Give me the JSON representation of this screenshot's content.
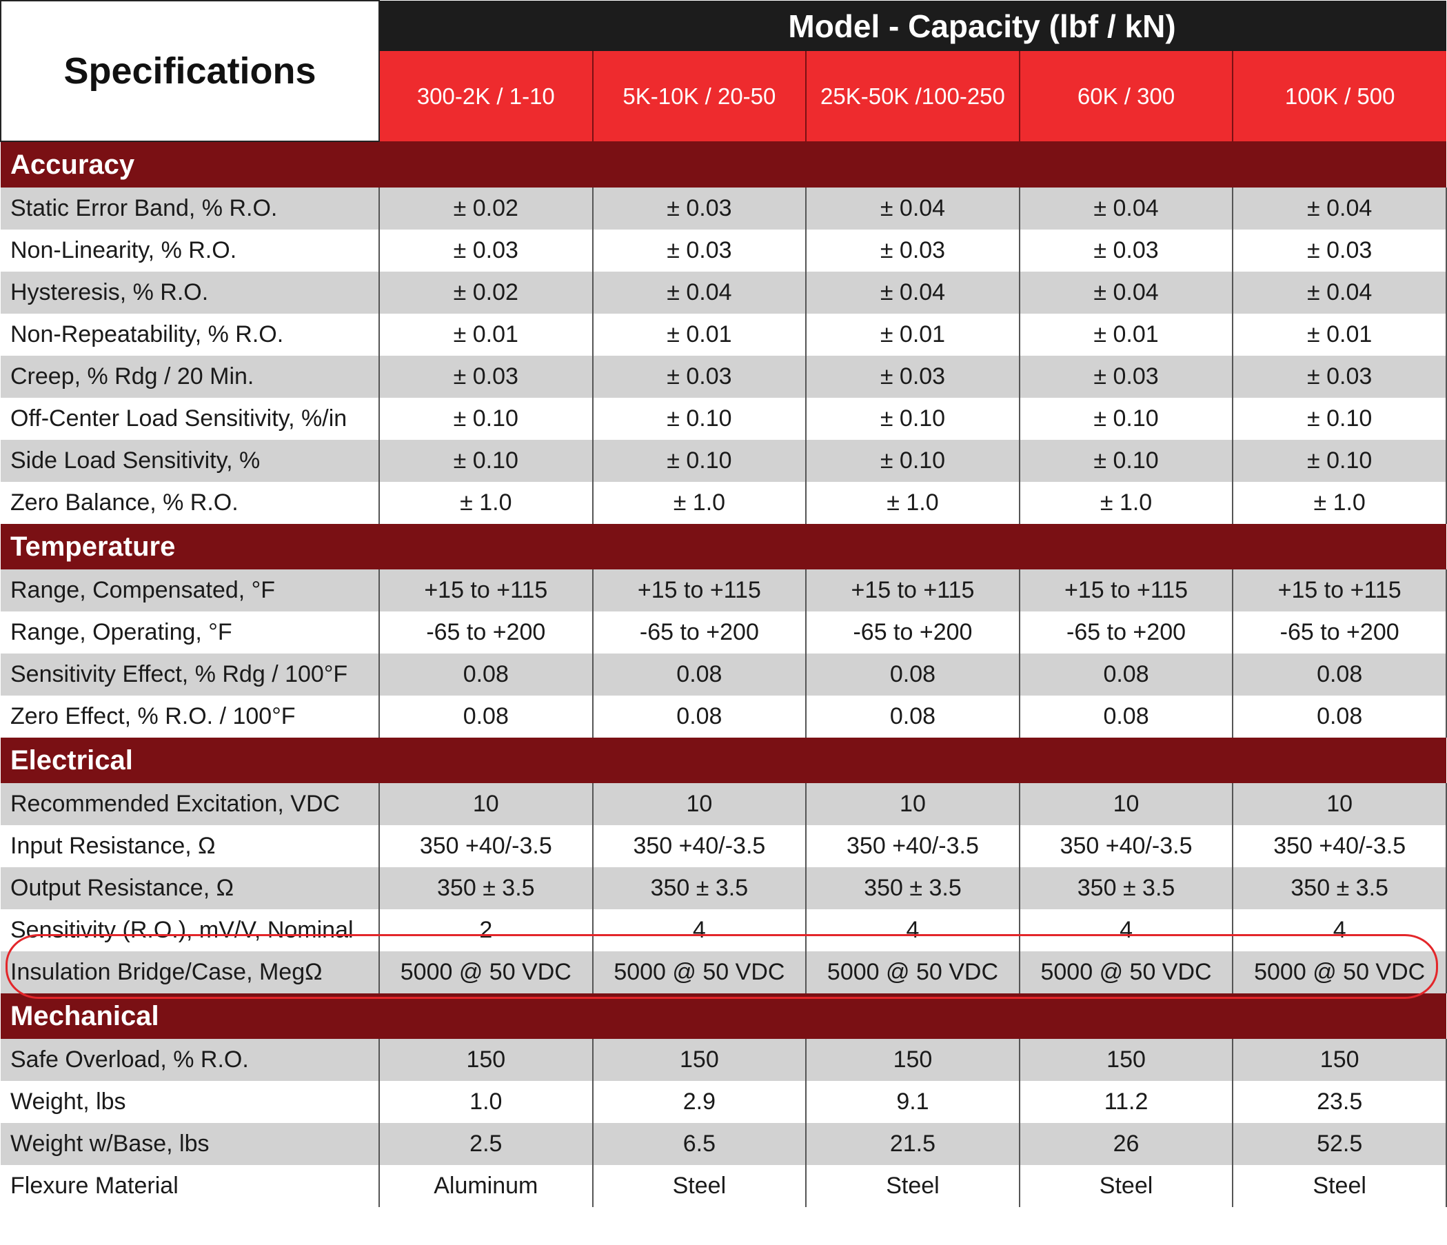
{
  "header": {
    "title": "Specifications",
    "group_label": "Model - Capacity (lbf / kN)",
    "models": [
      "300-2K / 1-10",
      "5K-10K / 20-50",
      "25K-50K /100-250",
      "60K / 300",
      "100K / 500"
    ]
  },
  "sections": [
    {
      "name": "Accuracy",
      "rows": [
        {
          "label": "Static Error Band, % R.O.",
          "values": [
            "± 0.02",
            "± 0.03",
            "± 0.04",
            "± 0.04",
            "± 0.04"
          ]
        },
        {
          "label": "Non-Linearity, % R.O.",
          "values": [
            "± 0.03",
            "± 0.03",
            "± 0.03",
            "± 0.03",
            "± 0.03"
          ]
        },
        {
          "label": "Hysteresis, % R.O.",
          "values": [
            "± 0.02",
            "± 0.04",
            "± 0.04",
            "± 0.04",
            "± 0.04"
          ]
        },
        {
          "label": "Non-Repeatability, % R.O.",
          "values": [
            "± 0.01",
            "± 0.01",
            "± 0.01",
            "± 0.01",
            "± 0.01"
          ]
        },
        {
          "label": "Creep, % Rdg / 20 Min.",
          "values": [
            "± 0.03",
            "± 0.03",
            "± 0.03",
            "± 0.03",
            "± 0.03"
          ]
        },
        {
          "label": "Off-Center Load Sensitivity, %/in",
          "values": [
            "± 0.10",
            "± 0.10",
            "± 0.10",
            "± 0.10",
            "± 0.10"
          ]
        },
        {
          "label": "Side Load Sensitivity, %",
          "values": [
            "± 0.10",
            "± 0.10",
            "± 0.10",
            "± 0.10",
            "± 0.10"
          ]
        },
        {
          "label": "Zero Balance, % R.O.",
          "values": [
            "± 1.0",
            "± 1.0",
            "± 1.0",
            "± 1.0",
            "± 1.0"
          ]
        }
      ]
    },
    {
      "name": "Temperature",
      "rows": [
        {
          "label": "Range, Compensated, °F",
          "values": [
            "+15 to +115",
            "+15 to +115",
            "+15 to +115",
            "+15 to +115",
            "+15 to +115"
          ]
        },
        {
          "label": "Range, Operating, °F",
          "values": [
            "-65 to +200",
            "-65 to +200",
            "-65 to +200",
            "-65 to +200",
            "-65 to +200"
          ]
        },
        {
          "label": "Sensitivity Effect, % Rdg / 100°F",
          "values": [
            "0.08",
            "0.08",
            "0.08",
            "0.08",
            "0.08"
          ]
        },
        {
          "label": "Zero Effect, % R.O. / 100°F",
          "values": [
            "0.08",
            "0.08",
            "0.08",
            "0.08",
            "0.08"
          ]
        }
      ]
    },
    {
      "name": "Electrical",
      "rows": [
        {
          "label": "Recommended Excitation, VDC",
          "values": [
            "10",
            "10",
            "10",
            "10",
            "10"
          ]
        },
        {
          "label": "Input Resistance, Ω",
          "values": [
            "350 +40/-3.5",
            "350 +40/-3.5",
            "350 +40/-3.5",
            "350 +40/-3.5",
            "350 +40/-3.5"
          ]
        },
        {
          "label": "Output Resistance, Ω",
          "values": [
            "350 ± 3.5",
            "350 ± 3.5",
            "350 ± 3.5",
            "350 ± 3.5",
            "350 ± 3.5"
          ]
        },
        {
          "label": "Sensitivity (R.O.), mV/V, Nominal",
          "values": [
            "2",
            "4",
            "4",
            "4",
            "4"
          ]
        },
        {
          "label": "Insulation Bridge/Case, MegΩ",
          "values": [
            "5000 @ 50 VDC",
            "5000 @ 50 VDC",
            "5000 @ 50 VDC",
            "5000 @ 50 VDC",
            "5000 @ 50 VDC"
          ]
        }
      ]
    },
    {
      "name": "Mechanical",
      "rows": [
        {
          "label": "Safe Overload, % R.O.",
          "values": [
            "150",
            "150",
            "150",
            "150",
            "150"
          ]
        },
        {
          "label": "Weight, lbs",
          "values": [
            "1.0",
            "2.9",
            "9.1",
            "11.2",
            "23.5"
          ]
        },
        {
          "label": "Weight w/Base, lbs",
          "values": [
            "2.5",
            "6.5",
            "21.5",
            "26",
            "52.5"
          ]
        },
        {
          "label": "Flexure Material",
          "values": [
            "Aluminum",
            "Steel",
            "Steel",
            "Steel",
            "Steel"
          ]
        }
      ]
    }
  ],
  "colors": {
    "header_black": "#1c1c1c",
    "header_red": "#ee2b2e",
    "section_maroon": "#7a1014",
    "row_shade": "#d2d2d2",
    "highlight_red": "#e3262a"
  }
}
